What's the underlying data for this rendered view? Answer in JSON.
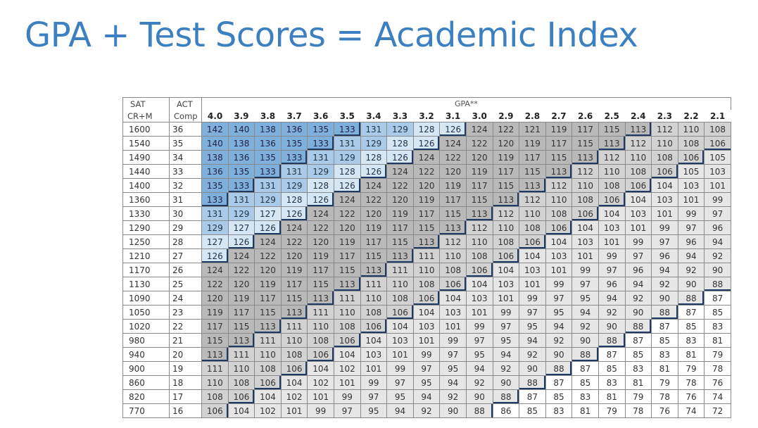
{
  "title": "GPA + Test Scores = Academic Index",
  "table": {
    "sat_header": [
      "SAT",
      "CR+M"
    ],
    "act_header": [
      "ACT",
      "Comp"
    ],
    "gpa_header": "GPA**",
    "gpas": [
      "4.0",
      "3.9",
      "3.8",
      "3.7",
      "3.6",
      "3.5",
      "3.4",
      "3.3",
      "3.2",
      "3.1",
      "3.0",
      "2.9",
      "2.8",
      "2.7",
      "2.6",
      "2.5",
      "2.4",
      "2.3",
      "2.2",
      "2.1"
    ],
    "rows": [
      {
        "sat": "1600",
        "act": "36",
        "values": [
          142,
          140,
          138,
          136,
          135,
          133,
          131,
          129,
          128,
          126,
          124,
          122,
          121,
          119,
          117,
          115,
          113,
          112,
          110,
          108
        ]
      },
      {
        "sat": "1540",
        "act": "35",
        "values": [
          140,
          138,
          136,
          135,
          133,
          131,
          129,
          128,
          126,
          124,
          122,
          120,
          119,
          117,
          115,
          113,
          112,
          110,
          108,
          106
        ]
      },
      {
        "sat": "1490",
        "act": "34",
        "values": [
          138,
          136,
          135,
          133,
          131,
          129,
          128,
          126,
          124,
          122,
          120,
          119,
          117,
          115,
          113,
          112,
          110,
          108,
          106,
          105
        ]
      },
      {
        "sat": "1440",
        "act": "33",
        "values": [
          136,
          135,
          133,
          131,
          129,
          128,
          126,
          124,
          122,
          120,
          119,
          117,
          115,
          113,
          112,
          110,
          108,
          106,
          105,
          103
        ]
      },
      {
        "sat": "1400",
        "act": "32",
        "values": [
          135,
          133,
          131,
          129,
          128,
          126,
          124,
          122,
          120,
          119,
          117,
          115,
          113,
          112,
          110,
          108,
          106,
          104,
          103,
          101
        ]
      },
      {
        "sat": "1360",
        "act": "31",
        "values": [
          133,
          131,
          129,
          128,
          126,
          124,
          122,
          120,
          119,
          117,
          115,
          113,
          112,
          110,
          108,
          106,
          104,
          103,
          101,
          99
        ]
      },
      {
        "sat": "1330",
        "act": "30",
        "values": [
          131,
          129,
          127,
          126,
          124,
          122,
          120,
          119,
          117,
          115,
          113,
          112,
          110,
          108,
          106,
          104,
          103,
          101,
          99,
          97
        ]
      },
      {
        "sat": "1290",
        "act": "29",
        "values": [
          129,
          127,
          126,
          124,
          122,
          120,
          119,
          117,
          115,
          113,
          112,
          110,
          108,
          106,
          104,
          103,
          101,
          99,
          97,
          96
        ]
      },
      {
        "sat": "1250",
        "act": "28",
        "values": [
          127,
          126,
          124,
          122,
          120,
          119,
          117,
          115,
          113,
          112,
          110,
          108,
          106,
          104,
          103,
          101,
          99,
          97,
          96,
          94
        ]
      },
      {
        "sat": "1210",
        "act": "27",
        "values": [
          126,
          124,
          122,
          120,
          119,
          117,
          115,
          113,
          111,
          110,
          108,
          106,
          104,
          103,
          101,
          99,
          97,
          96,
          94,
          92
        ]
      },
      {
        "sat": "1170",
        "act": "26",
        "values": [
          124,
          122,
          120,
          119,
          117,
          115,
          113,
          111,
          110,
          108,
          106,
          104,
          103,
          101,
          99,
          97,
          96,
          94,
          92,
          90
        ]
      },
      {
        "sat": "1130",
        "act": "25",
        "values": [
          122,
          120,
          119,
          117,
          115,
          113,
          111,
          110,
          108,
          106,
          104,
          103,
          101,
          99,
          97,
          96,
          94,
          92,
          90,
          88
        ]
      },
      {
        "sat": "1090",
        "act": "24",
        "values": [
          120,
          119,
          117,
          115,
          113,
          111,
          110,
          108,
          106,
          104,
          103,
          101,
          99,
          97,
          95,
          94,
          92,
          90,
          88,
          87
        ]
      },
      {
        "sat": "1050",
        "act": "23",
        "values": [
          119,
          117,
          115,
          113,
          111,
          110,
          108,
          106,
          104,
          103,
          101,
          99,
          97,
          95,
          94,
          92,
          90,
          88,
          87,
          85
        ]
      },
      {
        "sat": "1020",
        "act": "22",
        "values": [
          117,
          115,
          113,
          111,
          110,
          108,
          106,
          104,
          103,
          101,
          99,
          97,
          95,
          94,
          92,
          90,
          88,
          87,
          85,
          83
        ]
      },
      {
        "sat": "980",
        "act": "21",
        "values": [
          115,
          113,
          111,
          110,
          108,
          106,
          104,
          103,
          101,
          99,
          97,
          95,
          94,
          92,
          90,
          88,
          87,
          85,
          83,
          81
        ]
      },
      {
        "sat": "940",
        "act": "20",
        "values": [
          113,
          111,
          110,
          108,
          106,
          104,
          103,
          101,
          99,
          97,
          95,
          94,
          92,
          90,
          88,
          87,
          85,
          83,
          81,
          79
        ]
      },
      {
        "sat": "900",
        "act": "19",
        "values": [
          111,
          110,
          108,
          106,
          104,
          102,
          101,
          99,
          97,
          95,
          94,
          92,
          90,
          88,
          87,
          85,
          83,
          81,
          79,
          78
        ]
      },
      {
        "sat": "860",
        "act": "18",
        "values": [
          110,
          108,
          106,
          104,
          102,
          101,
          99,
          97,
          95,
          94,
          92,
          90,
          88,
          87,
          85,
          83,
          81,
          79,
          78,
          76
        ]
      },
      {
        "sat": "820",
        "act": "17",
        "values": [
          108,
          106,
          104,
          102,
          101,
          99,
          97,
          95,
          94,
          92,
          90,
          88,
          87,
          85,
          83,
          81,
          79,
          78,
          76,
          74
        ]
      },
      {
        "sat": "770",
        "act": "16",
        "values": [
          106,
          104,
          102,
          101,
          99,
          97,
          95,
          94,
          92,
          90,
          88,
          86,
          85,
          83,
          81,
          79,
          78,
          76,
          74,
          72
        ]
      }
    ]
  }
}
